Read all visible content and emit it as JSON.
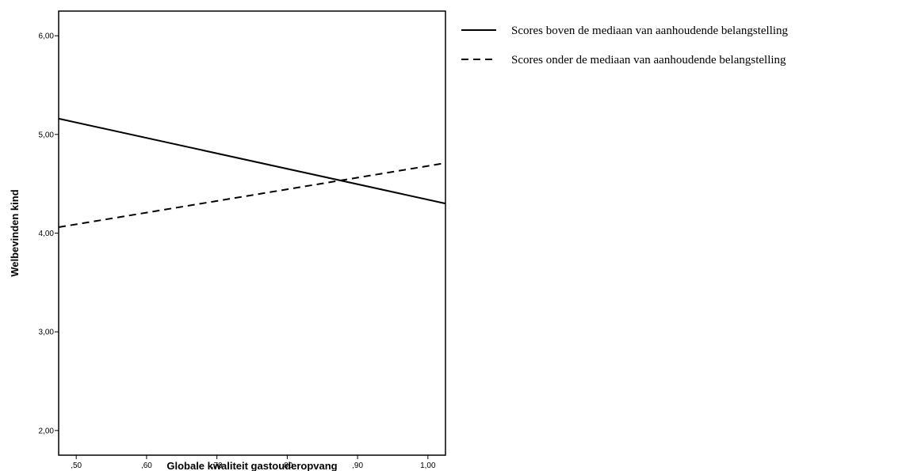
{
  "chart_data": {
    "type": "line",
    "title": "",
    "xlabel": "Globale kwaliteit gastouderopvang",
    "ylabel": "Welbevinden kind",
    "xlim": [
      0.475,
      1.025
    ],
    "ylim": [
      1.75,
      6.25
    ],
    "xticks": [
      {
        "value": 0.5,
        "label": ",50"
      },
      {
        "value": 0.6,
        "label": ",60"
      },
      {
        "value": 0.7,
        "label": ",70"
      },
      {
        "value": 0.8,
        "label": ",80"
      },
      {
        "value": 0.9,
        "label": ",90"
      },
      {
        "value": 1.0,
        "label": "1,00"
      }
    ],
    "yticks": [
      {
        "value": 2,
        "label": "2,00"
      },
      {
        "value": 3,
        "label": "3,00"
      },
      {
        "value": 4,
        "label": "4,00"
      },
      {
        "value": 5,
        "label": "5,00"
      },
      {
        "value": 6,
        "label": "6,00"
      }
    ],
    "grid": false,
    "legend_position": "right",
    "series": [
      {
        "name": "Scores boven de mediaan van aanhoudende belangstelling",
        "style": "solid",
        "color": "#000000",
        "x": [
          0.475,
          1.025
        ],
        "y": [
          5.16,
          4.3
        ]
      },
      {
        "name": "Scores onder de mediaan van aanhoudende belangstelling",
        "style": "dashed",
        "color": "#000000",
        "x": [
          0.475,
          1.025
        ],
        "y": [
          4.06,
          4.71
        ]
      }
    ]
  }
}
